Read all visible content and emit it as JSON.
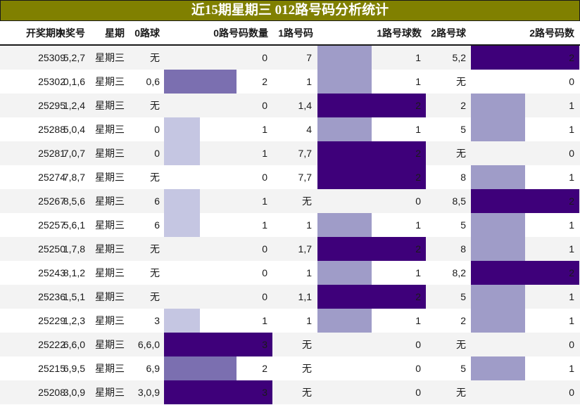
{
  "title": "近15期星期三 012路号码分析统计",
  "colors": {
    "title_bg": "#808000",
    "bar_dark": "#3e007a",
    "bar_mid": "#7b6fb0",
    "bar_light0": "#c5c6e2",
    "bar_light12": "#9f9cc8",
    "row_alt": "#f3f3f3"
  },
  "headers": {
    "issue": "开奖期次",
    "numbers": "中奖号",
    "weekday": "星期",
    "road0_balls": "0路球",
    "road0_count": "0路号码数量",
    "road1_balls": "1路号码",
    "road1_count": "1路号球数",
    "road2_balls": "2路号球",
    "road2_count": "2路号码数"
  },
  "rows": [
    {
      "issue": "25309",
      "numbers": "5,2,7",
      "weekday": "星期三",
      "r0": "无",
      "c0": 0,
      "r1": "7",
      "c1": 1,
      "r2": "5,2",
      "c2": 2
    },
    {
      "issue": "25302",
      "numbers": "0,1,6",
      "weekday": "星期三",
      "r0": "0,6",
      "c0": 2,
      "r1": "1",
      "c1": 1,
      "r2": "无",
      "c2": 0
    },
    {
      "issue": "25295",
      "numbers": "1,2,4",
      "weekday": "星期三",
      "r0": "无",
      "c0": 0,
      "r1": "1,4",
      "c1": 2,
      "r2": "2",
      "c2": 1
    },
    {
      "issue": "25288",
      "numbers": "5,0,4",
      "weekday": "星期三",
      "r0": "0",
      "c0": 1,
      "r1": "4",
      "c1": 1,
      "r2": "5",
      "c2": 1
    },
    {
      "issue": "25281",
      "numbers": "7,0,7",
      "weekday": "星期三",
      "r0": "0",
      "c0": 1,
      "r1": "7,7",
      "c1": 2,
      "r2": "无",
      "c2": 0
    },
    {
      "issue": "25274",
      "numbers": "7,8,7",
      "weekday": "星期三",
      "r0": "无",
      "c0": 0,
      "r1": "7,7",
      "c1": 2,
      "r2": "8",
      "c2": 1
    },
    {
      "issue": "25267",
      "numbers": "8,5,6",
      "weekday": "星期三",
      "r0": "6",
      "c0": 1,
      "r1": "无",
      "c1": 0,
      "r2": "8,5",
      "c2": 2
    },
    {
      "issue": "25257",
      "numbers": "5,6,1",
      "weekday": "星期三",
      "r0": "6",
      "c0": 1,
      "r1": "1",
      "c1": 1,
      "r2": "5",
      "c2": 1
    },
    {
      "issue": "25250",
      "numbers": "1,7,8",
      "weekday": "星期三",
      "r0": "无",
      "c0": 0,
      "r1": "1,7",
      "c1": 2,
      "r2": "8",
      "c2": 1
    },
    {
      "issue": "25243",
      "numbers": "8,1,2",
      "weekday": "星期三",
      "r0": "无",
      "c0": 0,
      "r1": "1",
      "c1": 1,
      "r2": "8,2",
      "c2": 2
    },
    {
      "issue": "25236",
      "numbers": "1,5,1",
      "weekday": "星期三",
      "r0": "无",
      "c0": 0,
      "r1": "1,1",
      "c1": 2,
      "r2": "5",
      "c2": 1
    },
    {
      "issue": "25229",
      "numbers": "1,2,3",
      "weekday": "星期三",
      "r0": "3",
      "c0": 1,
      "r1": "1",
      "c1": 1,
      "r2": "2",
      "c2": 1
    },
    {
      "issue": "25222",
      "numbers": "6,6,0",
      "weekday": "星期三",
      "r0": "6,6,0",
      "c0": 3,
      "r1": "无",
      "c1": 0,
      "r2": "无",
      "c2": 0
    },
    {
      "issue": "25215",
      "numbers": "6,9,5",
      "weekday": "星期三",
      "r0": "6,9",
      "c0": 2,
      "r1": "无",
      "c1": 0,
      "r2": "5",
      "c2": 1
    },
    {
      "issue": "25208",
      "numbers": "3,0,9",
      "weekday": "星期三",
      "r0": "3,0,9",
      "c0": 3,
      "r1": "无",
      "c1": 0,
      "r2": "无",
      "c2": 0
    }
  ]
}
